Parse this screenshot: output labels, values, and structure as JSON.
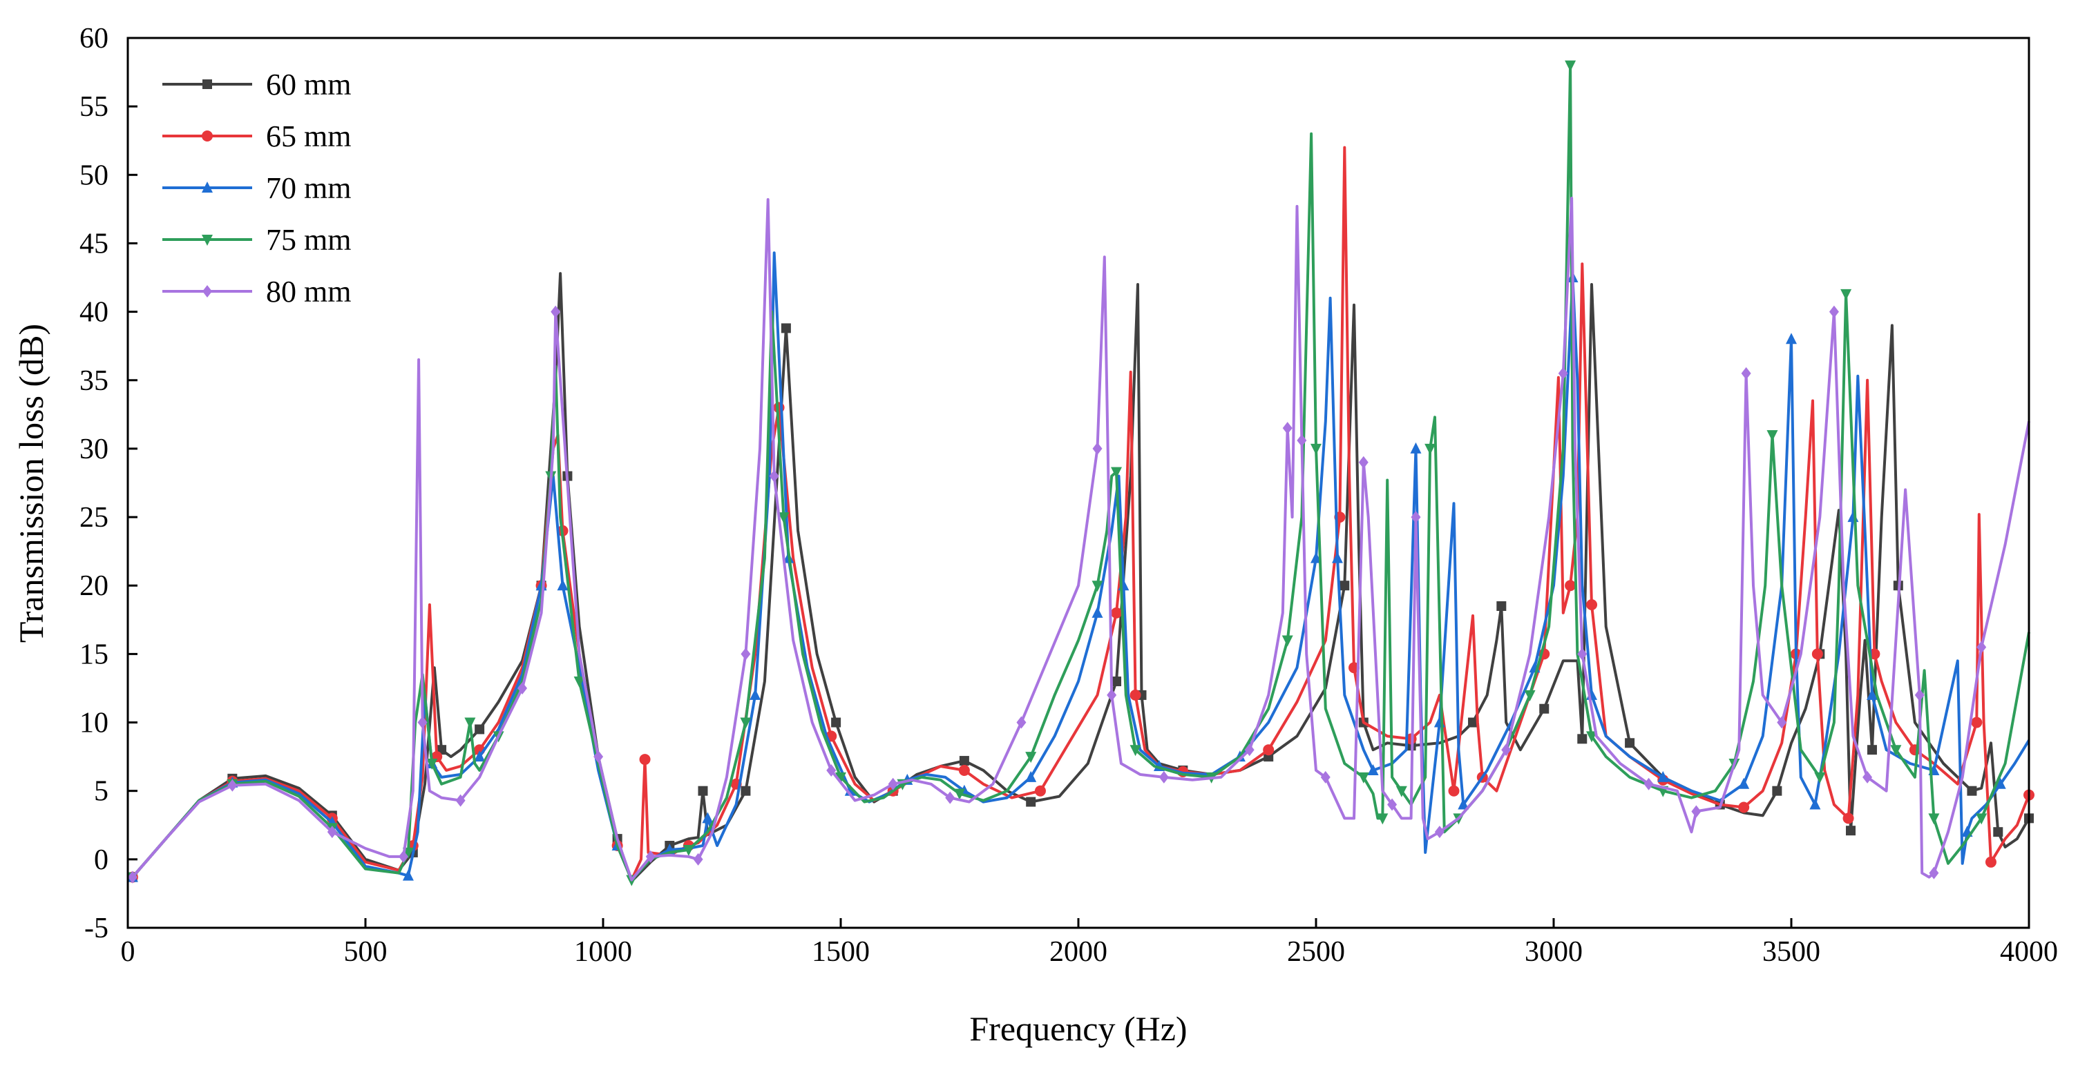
{
  "chart_data": {
    "type": "line",
    "title": "",
    "xlabel": "Frequency (Hz)",
    "ylabel": "Transmission loss (dB)",
    "xlim": [
      0,
      4000
    ],
    "ylim": [
      -5,
      60
    ],
    "xticks": [
      0,
      500,
      1000,
      1500,
      2000,
      2500,
      3000,
      3500,
      4000
    ],
    "yticks": [
      -5,
      0,
      5,
      10,
      15,
      20,
      25,
      30,
      35,
      40,
      45,
      50,
      55,
      60
    ],
    "grid": false,
    "legend_position": "top-left",
    "series": [
      {
        "name": "60 mm",
        "color": "#404040",
        "marker": "square",
        "x": [
          10,
          80,
          150,
          220,
          290,
          360,
          430,
          500,
          570,
          600,
          625,
          645,
          660,
          680,
          700,
          740,
          780,
          830,
          870,
          900,
          910,
          925,
          950,
          990,
          1030,
          1060,
          1100,
          1140,
          1180,
          1200,
          1210,
          1220,
          1260,
          1300,
          1340,
          1375,
          1385,
          1410,
          1450,
          1490,
          1530,
          1570,
          1610,
          1660,
          1710,
          1760,
          1800,
          1850,
          1900,
          1960,
          2020,
          2080,
          2110,
          2125,
          2133,
          2145,
          2170,
          2220,
          2280,
          2340,
          2400,
          2460,
          2520,
          2560,
          2580,
          2590,
          2600,
          2620,
          2650,
          2700,
          2760,
          2800,
          2830,
          2860,
          2880,
          2890,
          2900,
          2930,
          2980,
          3020,
          3050,
          3060,
          3080,
          3110,
          3160,
          3230,
          3290,
          3350,
          3400,
          3440,
          3470,
          3500,
          3530,
          3560,
          3600,
          3615,
          3625,
          3645,
          3655,
          3670,
          3690,
          3712,
          3725,
          3760,
          3820,
          3880,
          3900,
          3920,
          3935,
          3950,
          3975,
          4000
        ],
        "y": [
          -1.3,
          1.5,
          4.3,
          5.9,
          6.1,
          5.2,
          3.2,
          0.0,
          -0.8,
          0.5,
          5.5,
          14.0,
          8.0,
          7.5,
          8.0,
          9.5,
          11.5,
          14.5,
          20.0,
          35.0,
          42.8,
          28.0,
          17.0,
          7.5,
          1.5,
          -1.6,
          -0.2,
          1.0,
          1.5,
          1.6,
          5.0,
          1.8,
          2.5,
          5.0,
          13.0,
          33.0,
          38.8,
          24.0,
          15.0,
          10.0,
          6.0,
          4.2,
          5.0,
          6.2,
          6.8,
          7.2,
          6.5,
          5.0,
          4.2,
          4.6,
          7.0,
          13.0,
          28.0,
          42.0,
          12.0,
          8.0,
          7.0,
          6.5,
          6.2,
          6.5,
          7.5,
          9.0,
          12.5,
          20.0,
          40.5,
          23.0,
          10.0,
          8.0,
          8.5,
          8.3,
          8.5,
          9.0,
          10.0,
          12.0,
          16.0,
          18.5,
          10.0,
          8.0,
          11.0,
          14.5,
          14.5,
          8.8,
          42.0,
          17.0,
          8.5,
          6.0,
          5.0,
          4.0,
          3.4,
          3.2,
          5.0,
          8.5,
          11.0,
          15.0,
          25.5,
          15.0,
          2.1,
          12.0,
          16.0,
          8.0,
          25.0,
          39.0,
          20.0,
          10.0,
          7.0,
          5.0,
          5.2,
          8.5,
          2.0,
          0.9,
          1.5,
          3.0
        ]
      },
      {
        "name": "65 mm",
        "color": "#e8363a",
        "marker": "circle",
        "x": [
          10,
          80,
          150,
          220,
          290,
          360,
          430,
          500,
          570,
          600,
          620,
          635,
          650,
          670,
          700,
          740,
          780,
          830,
          870,
          895,
          905,
          915,
          950,
          990,
          1030,
          1060,
          1080,
          1088,
          1095,
          1140,
          1180,
          1200,
          1240,
          1280,
          1320,
          1355,
          1370,
          1400,
          1440,
          1480,
          1530,
          1570,
          1610,
          1660,
          1710,
          1760,
          1800,
          1860,
          1920,
          1980,
          2040,
          2080,
          2100,
          2110,
          2120,
          2140,
          2170,
          2220,
          2280,
          2340,
          2400,
          2460,
          2520,
          2550,
          2560,
          2570,
          2580,
          2600,
          2650,
          2700,
          2740,
          2760,
          2790,
          2830,
          2840,
          2850,
          2880,
          2930,
          2980,
          3010,
          3020,
          3035,
          3050,
          3060,
          3080,
          3110,
          3160,
          3230,
          3290,
          3350,
          3400,
          3440,
          3480,
          3510,
          3530,
          3545,
          3555,
          3570,
          3590,
          3620,
          3640,
          3660,
          3675,
          3690,
          3720,
          3760,
          3800,
          3850,
          3890,
          3895,
          3905,
          3920,
          3950,
          3975,
          4000
        ],
        "y": [
          -1.3,
          1.5,
          4.3,
          5.7,
          5.9,
          5.0,
          3.0,
          -0.2,
          -0.8,
          1.0,
          6.0,
          18.6,
          7.5,
          6.5,
          6.8,
          8.0,
          10.0,
          14.0,
          20.0,
          30.0,
          31.0,
          24.0,
          15.0,
          7.0,
          1.0,
          -1.5,
          0.0,
          7.3,
          0.5,
          0.3,
          1.0,
          1.2,
          2.5,
          5.5,
          15.0,
          30.0,
          33.0,
          22.0,
          14.0,
          9.0,
          5.5,
          4.3,
          5.0,
          6.0,
          6.8,
          6.5,
          5.5,
          4.5,
          5.0,
          8.5,
          12.0,
          18.0,
          25.0,
          35.6,
          12.0,
          8.0,
          6.8,
          6.4,
          6.2,
          6.5,
          8.0,
          11.5,
          16.0,
          25.0,
          52.0,
          28.0,
          14.0,
          10.0,
          9.0,
          8.8,
          10.0,
          12.0,
          5.0,
          17.8,
          10.0,
          6.0,
          5.0,
          10.0,
          15.0,
          35.2,
          18.0,
          20.0,
          25.0,
          43.5,
          18.6,
          9.0,
          7.5,
          5.8,
          4.8,
          4.0,
          3.8,
          5.0,
          8.5,
          15.0,
          25.0,
          33.5,
          15.0,
          6.5,
          4.0,
          3.0,
          12.0,
          35.0,
          15.0,
          13.0,
          10.0,
          8.0,
          7.0,
          5.5,
          10.0,
          25.2,
          10.0,
          -0.2,
          1.5,
          2.5,
          4.7
        ]
      },
      {
        "name": "70 mm",
        "color": "#1f6ed4",
        "marker": "triangle-up",
        "x": [
          10,
          80,
          150,
          220,
          290,
          360,
          430,
          500,
          570,
          590,
          610,
          625,
          640,
          660,
          700,
          740,
          780,
          830,
          870,
          895,
          905,
          915,
          950,
          990,
          1030,
          1060,
          1100,
          1140,
          1180,
          1210,
          1220,
          1240,
          1280,
          1320,
          1350,
          1360,
          1390,
          1430,
          1470,
          1520,
          1560,
          1600,
          1640,
          1680,
          1720,
          1760,
          1800,
          1850,
          1900,
          1950,
          2000,
          2040,
          2070,
          2085,
          2095,
          2105,
          2130,
          2170,
          2220,
          2280,
          2340,
          2400,
          2460,
          2500,
          2520,
          2530,
          2545,
          2560,
          2600,
          2620,
          2660,
          2690,
          2710,
          2720,
          2730,
          2760,
          2790,
          2800,
          2810,
          2860,
          2910,
          2960,
          3000,
          3020,
          3040,
          3050,
          3060,
          3080,
          3110,
          3160,
          3230,
          3290,
          3350,
          3400,
          3440,
          3480,
          3500,
          3510,
          3520,
          3550,
          3570,
          3600,
          3630,
          3640,
          3655,
          3670,
          3700,
          3750,
          3800,
          3850,
          3860,
          3870,
          3880,
          3910,
          3940,
          3970,
          4000
        ],
        "y": [
          -1.3,
          1.5,
          4.3,
          5.6,
          5.8,
          4.8,
          2.7,
          -0.5,
          -1.0,
          -1.2,
          2.0,
          12.0,
          7.0,
          6.0,
          6.2,
          7.5,
          9.5,
          13.5,
          20.0,
          28.0,
          24.0,
          20.0,
          14.0,
          6.5,
          1.0,
          -1.5,
          0.0,
          0.7,
          0.8,
          1.0,
          3.0,
          1.0,
          4.0,
          12.0,
          28.0,
          44.3,
          22.0,
          14.0,
          9.0,
          5.0,
          4.2,
          4.8,
          5.8,
          6.2,
          6.0,
          5.0,
          4.2,
          4.5,
          6.0,
          9.0,
          13.0,
          18.0,
          24.0,
          28.0,
          20.0,
          12.0,
          8.0,
          6.8,
          6.3,
          6.2,
          7.5,
          10.0,
          14.0,
          22.0,
          32.0,
          41.0,
          22.0,
          12.0,
          8.0,
          6.5,
          7.0,
          8.0,
          30.0,
          12.0,
          0.5,
          10.0,
          26.0,
          8.0,
          4.0,
          6.5,
          10.0,
          14.0,
          20.0,
          28.0,
          42.5,
          35.0,
          20.0,
          12.0,
          9.0,
          7.5,
          6.0,
          5.0,
          4.3,
          5.5,
          9.0,
          20.0,
          38.0,
          15.0,
          6.0,
          4.0,
          8.0,
          15.0,
          25.0,
          35.3,
          24.0,
          12.0,
          8.0,
          7.0,
          6.5,
          14.5,
          -0.3,
          2.0,
          3.0,
          4.0,
          5.5,
          7.0,
          8.7
        ]
      },
      {
        "name": "75 mm",
        "color": "#2e9e5a",
        "marker": "triangle-down",
        "x": [
          10,
          80,
          150,
          220,
          290,
          360,
          430,
          500,
          570,
          590,
          605,
          620,
          640,
          660,
          700,
          720,
          730,
          740,
          780,
          830,
          870,
          890,
          900,
          910,
          950,
          990,
          1030,
          1060,
          1100,
          1140,
          1180,
          1220,
          1260,
          1300,
          1340,
          1355,
          1380,
          1420,
          1460,
          1500,
          1550,
          1590,
          1630,
          1670,
          1710,
          1750,
          1800,
          1850,
          1900,
          1950,
          2000,
          2040,
          2060,
          2070,
          2080,
          2090,
          2100,
          2120,
          2160,
          2220,
          2280,
          2340,
          2400,
          2440,
          2470,
          2490,
          2500,
          2520,
          2560,
          2600,
          2620,
          2630,
          2640,
          2650,
          2660,
          2680,
          2700,
          2730,
          2740,
          2750,
          2770,
          2800,
          2850,
          2900,
          2950,
          2990,
          3020,
          3035,
          3040,
          3050,
          3080,
          3110,
          3160,
          3230,
          3290,
          3340,
          3380,
          3420,
          3445,
          3460,
          3480,
          3520,
          3560,
          3590,
          3600,
          3615,
          3640,
          3680,
          3720,
          3760,
          3780,
          3800,
          3830,
          3860,
          3900,
          3950,
          4000
        ],
        "y": [
          -1.3,
          1.5,
          4.3,
          5.5,
          5.7,
          4.6,
          2.3,
          -0.7,
          -1.0,
          0.5,
          10.0,
          13.5,
          7.0,
          5.5,
          6.0,
          10.0,
          7.0,
          6.5,
          9.0,
          13.0,
          19.0,
          28.0,
          36.0,
          25.0,
          13.0,
          7.0,
          1.0,
          -1.5,
          0.0,
          0.5,
          0.7,
          2.0,
          4.5,
          10.0,
          22.0,
          40.0,
          25.0,
          15.0,
          9.5,
          6.0,
          4.2,
          4.5,
          5.5,
          6.0,
          5.8,
          4.8,
          4.3,
          5.0,
          7.5,
          12.0,
          16.0,
          20.0,
          24.0,
          28.0,
          28.3,
          20.0,
          12.0,
          8.0,
          6.8,
          6.2,
          6.0,
          7.5,
          11.0,
          16.0,
          25.0,
          53.0,
          30.0,
          11.0,
          7.0,
          6.0,
          4.8,
          3.0,
          3.0,
          27.7,
          6.0,
          5.0,
          4.0,
          6.0,
          30.0,
          32.3,
          2.0,
          3.0,
          5.0,
          8.0,
          12.0,
          17.0,
          30.0,
          58.0,
          30.0,
          15.0,
          9.0,
          7.5,
          6.0,
          5.0,
          4.5,
          5.0,
          7.0,
          13.0,
          20.0,
          31.0,
          20.0,
          8.0,
          6.0,
          10.0,
          20.0,
          41.3,
          20.0,
          12.0,
          8.0,
          6.0,
          13.8,
          3.0,
          -0.3,
          1.0,
          3.0,
          7.0,
          16.6
        ]
      },
      {
        "name": "80 mm",
        "color": "#a874e0",
        "marker": "diamond",
        "x": [
          10,
          80,
          150,
          220,
          290,
          360,
          430,
          500,
          550,
          580,
          600,
          612,
          620,
          635,
          660,
          700,
          740,
          780,
          830,
          870,
          895,
          900,
          910,
          950,
          990,
          1030,
          1060,
          1100,
          1140,
          1180,
          1200,
          1230,
          1260,
          1300,
          1330,
          1347,
          1360,
          1400,
          1440,
          1480,
          1530,
          1570,
          1610,
          1650,
          1690,
          1730,
          1770,
          1820,
          1880,
          1940,
          2000,
          2040,
          2055,
          2062,
          2070,
          2090,
          2130,
          2180,
          2240,
          2300,
          2360,
          2400,
          2430,
          2440,
          2450,
          2460,
          2470,
          2480,
          2500,
          2520,
          2560,
          2580,
          2600,
          2610,
          2640,
          2660,
          2680,
          2700,
          2710,
          2725,
          2735,
          2760,
          2800,
          2850,
          2900,
          2950,
          2990,
          3020,
          3038,
          3045,
          3060,
          3090,
          3140,
          3200,
          3260,
          3290,
          3300,
          3350,
          3390,
          3405,
          3420,
          3440,
          3480,
          3520,
          3560,
          3590,
          3610,
          3630,
          3660,
          3700,
          3740,
          3770,
          3775,
          3790,
          3800,
          3830,
          3860,
          3900,
          3950,
          4000
        ],
        "y": [
          -1.3,
          1.5,
          4.2,
          5.4,
          5.5,
          4.3,
          2.0,
          0.8,
          0.2,
          0.2,
          5.0,
          36.5,
          10.0,
          5.0,
          4.5,
          4.3,
          6.0,
          9.0,
          12.5,
          18.0,
          30.0,
          40.0,
          35.0,
          15.0,
          7.5,
          1.5,
          -1.5,
          0.2,
          0.3,
          0.2,
          0.0,
          2.0,
          6.0,
          15.0,
          30.0,
          48.2,
          28.0,
          16.0,
          10.0,
          6.5,
          4.3,
          4.7,
          5.5,
          5.8,
          5.5,
          4.5,
          4.2,
          5.5,
          10.0,
          15.0,
          20.0,
          30.0,
          44.0,
          30.0,
          12.0,
          7.0,
          6.2,
          6.0,
          5.8,
          6.0,
          8.0,
          12.0,
          18.0,
          31.5,
          25.0,
          47.7,
          30.6,
          15.0,
          6.5,
          6.0,
          3.0,
          3.0,
          29.0,
          25.0,
          5.0,
          4.0,
          3.0,
          3.0,
          25.0,
          3.0,
          1.5,
          2.0,
          3.0,
          5.0,
          8.0,
          15.0,
          25.0,
          35.5,
          48.3,
          30.0,
          15.0,
          9.0,
          7.0,
          5.5,
          5.0,
          2.0,
          3.5,
          3.8,
          8.0,
          35.5,
          20.0,
          12.0,
          10.0,
          15.0,
          25.0,
          40.0,
          20.0,
          9.0,
          6.0,
          5.0,
          27.0,
          12.0,
          -1.0,
          -1.3,
          -1.0,
          2.0,
          6.0,
          15.5,
          23.0,
          32.0
        ]
      }
    ]
  }
}
